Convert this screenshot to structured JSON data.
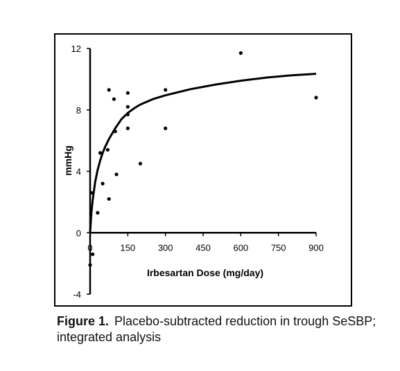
{
  "chart_data": {
    "type": "scatter",
    "xlabel": "Irbesartan Dose (mg/day)",
    "ylabel": "mmHg",
    "xlim": [
      0,
      900
    ],
    "ylim": [
      -4,
      12
    ],
    "x_ticks": [
      0,
      150,
      300,
      450,
      600,
      750,
      900
    ],
    "y_ticks": [
      -4,
      0,
      4,
      8,
      12
    ],
    "grid": false,
    "legend": "none",
    "colors": {
      "points": "#000000",
      "curve": "#000000"
    },
    "points": [
      {
        "x": 0,
        "y": -2.1
      },
      {
        "x": 10,
        "y": -1.4
      },
      {
        "x": 5,
        "y": 2.6
      },
      {
        "x": 30,
        "y": 1.3
      },
      {
        "x": 50,
        "y": 3.2
      },
      {
        "x": 40,
        "y": 5.2
      },
      {
        "x": 70,
        "y": 5.4
      },
      {
        "x": 75,
        "y": 2.2
      },
      {
        "x": 75,
        "y": 9.3
      },
      {
        "x": 95,
        "y": 8.7
      },
      {
        "x": 100,
        "y": 6.6
      },
      {
        "x": 105,
        "y": 3.8
      },
      {
        "x": 150,
        "y": 9.1
      },
      {
        "x": 150,
        "y": 8.2
      },
      {
        "x": 150,
        "y": 7.7
      },
      {
        "x": 150,
        "y": 6.8
      },
      {
        "x": 200,
        "y": 4.5
      },
      {
        "x": 300,
        "y": 9.3
      },
      {
        "x": 300,
        "y": 6.8
      },
      {
        "x": 600,
        "y": 11.7
      },
      {
        "x": 900,
        "y": 8.8
      }
    ],
    "fitted_curve": {
      "x": [
        0,
        5,
        10,
        20,
        30,
        40,
        50,
        60,
        75,
        100,
        125,
        150,
        175,
        200,
        250,
        300,
        400,
        500,
        600,
        700,
        800,
        900
      ],
      "y": [
        0,
        1.3,
        2.1,
        3.3,
        4.1,
        4.7,
        5.2,
        5.6,
        6.1,
        6.8,
        7.4,
        7.8,
        8.1,
        8.35,
        8.7,
        8.95,
        9.35,
        9.65,
        9.9,
        10.1,
        10.25,
        10.35
      ]
    }
  },
  "caption": {
    "label": "Figure 1.",
    "text": "Placebo-subtracted reduction in trough SeSBP; integrated analysis"
  }
}
